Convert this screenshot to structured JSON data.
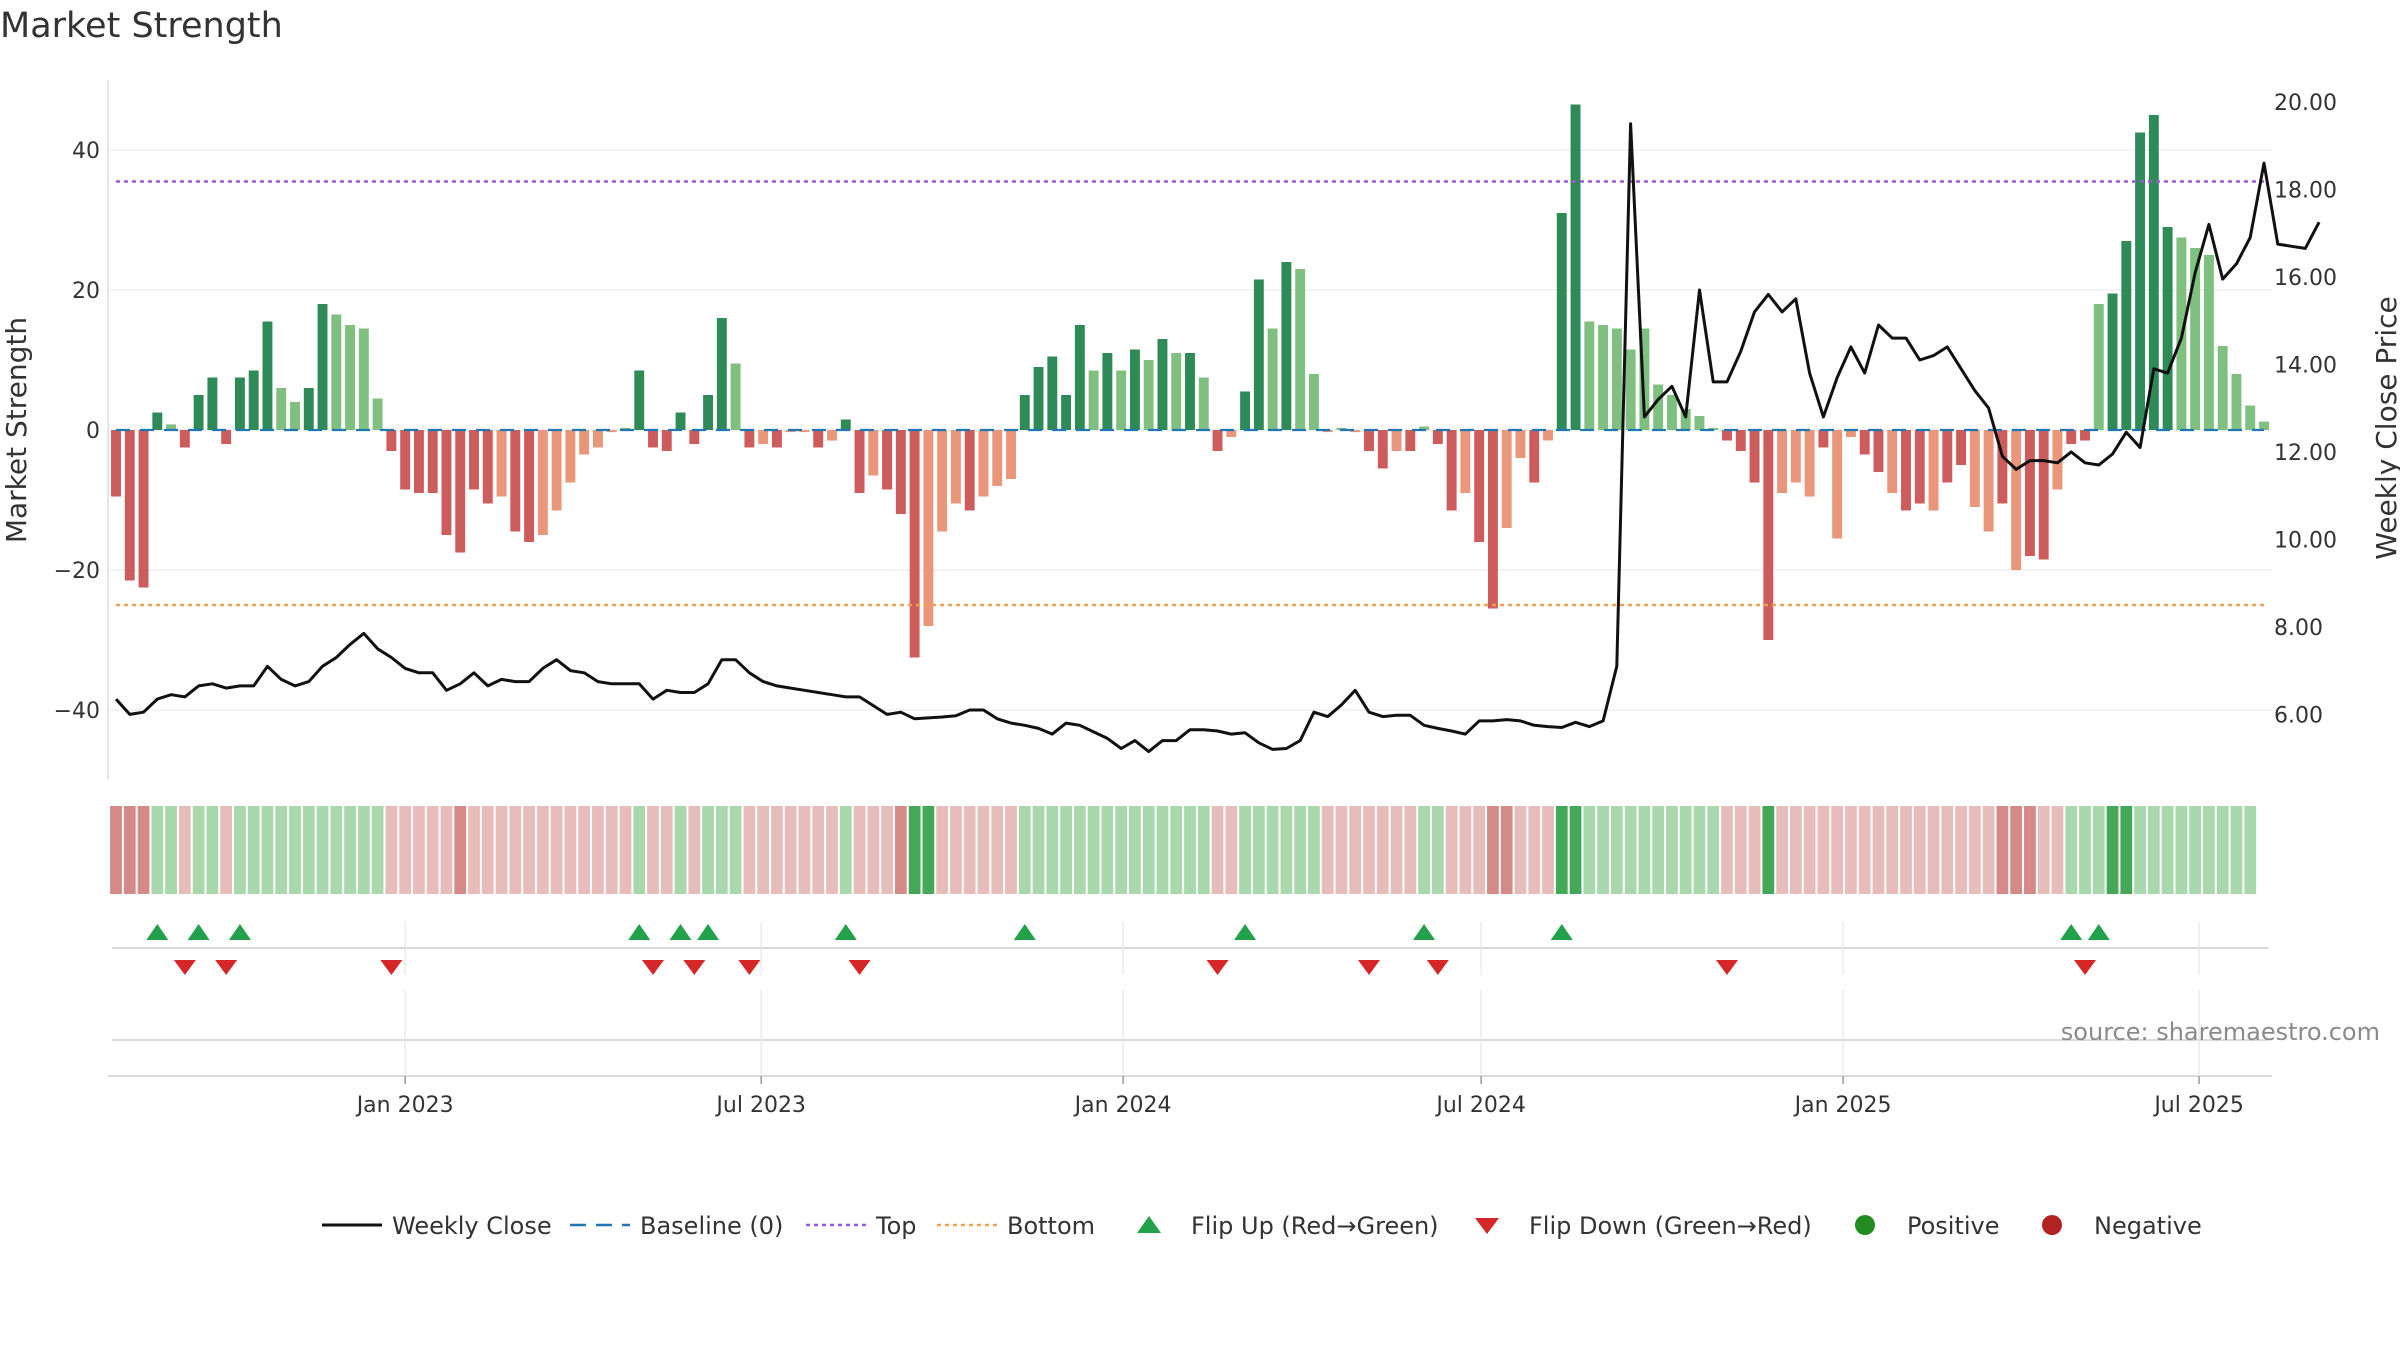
{
  "title": "Market Strength",
  "source": "source: sharemaestro.com",
  "colors": {
    "strong_green": "#2e8b57",
    "light_green": "#7fbf7f",
    "strong_red": "#cd5c5c",
    "light_red": "#e9967a",
    "top_line": "#9b59d6",
    "bottom_line": "#f0a050",
    "baseline": "#1f77b4",
    "price_line": "#111111",
    "flip_up": "#22a04a",
    "flip_down": "#d62728",
    "positive": "#228b22",
    "negative": "#b22222"
  },
  "chart_data": {
    "type": "bar",
    "title": "Market Strength",
    "ylabel": "Market Strength",
    "y2label": "Weekly Close Price",
    "ylim": [
      -50,
      50
    ],
    "y2lim": [
      4.5,
      20.5
    ],
    "yticks": [
      "40",
      "20",
      "0",
      "−20",
      "−40"
    ],
    "yticks_values": [
      40,
      20,
      0,
      -20,
      -40
    ],
    "y2ticks": [
      "20.00",
      "18.00",
      "16.00",
      "14.00",
      "12.00",
      "10.00",
      "8.00",
      "6.00"
    ],
    "y2ticks_values": [
      20,
      18,
      16,
      14,
      12,
      10,
      8,
      6
    ],
    "xticks": [
      "Jan 2023",
      "Jul 2023",
      "Jan 2024",
      "Jul 2024",
      "Jan 2025",
      "Jul 2025"
    ],
    "xticks_dates": [
      "2023-01-01",
      "2023-07-01",
      "2024-01-01",
      "2024-07-01",
      "2025-01-01",
      "2025-07-01"
    ],
    "x_start": "2022-08-07",
    "week_interval_days": 7,
    "top": 35.5,
    "bottom": -25,
    "strength": [
      -9.5,
      -21.5,
      -22.5,
      2.5,
      0.8,
      -2.5,
      5,
      7.5,
      -2,
      7.5,
      8.5,
      15.5,
      6,
      4,
      6,
      18,
      16.5,
      15,
      14.5,
      4.5,
      -3,
      -8.5,
      -9,
      -9,
      -15,
      -17.5,
      -8.5,
      -10.5,
      -9.5,
      -14.5,
      -16,
      -15,
      -11.5,
      -7.5,
      -3.5,
      -2.5,
      -0.3,
      0.3,
      8.5,
      -2.5,
      -3,
      2.5,
      -2,
      5,
      16,
      9.5,
      -2.5,
      -2,
      -2.5,
      -0.3,
      -0.3,
      -2.5,
      -1.5,
      1.5,
      -9,
      -6.5,
      -8.5,
      -12,
      -32.5,
      -28,
      -14.5,
      -10.5,
      -11.5,
      -9.5,
      -8,
      -7,
      5,
      9,
      10.5,
      5,
      15,
      8.5,
      11,
      8.5,
      11.5,
      10,
      13,
      11,
      11,
      7.5,
      -3,
      -1,
      5.5,
      21.5,
      14.5,
      24,
      23,
      8,
      -0.3,
      0.3,
      -0.3,
      -3,
      -5.5,
      -3,
      -3,
      0.5,
      -2,
      -11.5,
      -9,
      -16,
      -25.5,
      -14,
      -4,
      -7.5,
      -1.5,
      31,
      46.5,
      15.5,
      15,
      14.5,
      11.5,
      14.5,
      6.5,
      5,
      3,
      2,
      0.3,
      -1.5,
      -3,
      -7.5,
      -30,
      -9,
      -7.5,
      -9.5,
      -2.5,
      -15.5,
      -1,
      -3.5,
      -6,
      -9,
      -11.5,
      -10.5,
      -11.5,
      -7.5,
      -5,
      -11,
      -14.5,
      -10.5,
      -20,
      -18,
      -18.5,
      -8.5,
      -2,
      -1.5,
      18,
      19.5,
      27,
      42.5,
      45,
      29,
      27.5,
      26,
      25,
      12,
      8,
      3.5,
      1.2
    ],
    "strength_shade": [
      1,
      1,
      1,
      1,
      0,
      1,
      1,
      1,
      1,
      1,
      1,
      1,
      0,
      0,
      1,
      1,
      0,
      0,
      0,
      0,
      1,
      1,
      1,
      1,
      1,
      1,
      1,
      1,
      0,
      1,
      1,
      0,
      0,
      0,
      0,
      0,
      0,
      0,
      1,
      1,
      1,
      1,
      1,
      1,
      1,
      0,
      1,
      0,
      1,
      0,
      0,
      1,
      0,
      1,
      1,
      0,
      1,
      1,
      1,
      0,
      0,
      0,
      1,
      0,
      0,
      0,
      1,
      1,
      1,
      1,
      1,
      0,
      1,
      0,
      1,
      0,
      1,
      0,
      1,
      0,
      1,
      0,
      1,
      1,
      0,
      1,
      0,
      0,
      0,
      0,
      0,
      1,
      1,
      0,
      1,
      0,
      1,
      1,
      0,
      1,
      1,
      0,
      0,
      1,
      0,
      1,
      1,
      0,
      0,
      0,
      0,
      0,
      0,
      0,
      0,
      0,
      0,
      1,
      1,
      1,
      1,
      0,
      0,
      0,
      1,
      0,
      0,
      1,
      1,
      0,
      1,
      1,
      0,
      1,
      1,
      0,
      0,
      1,
      0,
      1,
      1,
      0,
      1,
      1,
      0,
      1,
      1,
      1,
      1,
      1,
      0,
      0,
      0,
      0,
      0,
      0,
      0,
      0
    ],
    "price": [
      6.35,
      6.0,
      6.05,
      6.35,
      6.45,
      6.4,
      6.65,
      6.7,
      6.6,
      6.65,
      6.65,
      7.1,
      6.8,
      6.65,
      6.75,
      7.1,
      7.3,
      7.6,
      7.85,
      7.5,
      7.3,
      7.05,
      6.95,
      6.95,
      6.55,
      6.7,
      6.95,
      6.65,
      6.8,
      6.75,
      6.75,
      7.05,
      7.25,
      7.0,
      6.95,
      6.75,
      6.7,
      6.7,
      6.7,
      6.35,
      6.55,
      6.5,
      6.5,
      6.7,
      7.25,
      7.25,
      6.95,
      6.75,
      6.65,
      6.6,
      6.55,
      6.5,
      6.45,
      6.4,
      6.4,
      6.2,
      6.0,
      6.05,
      5.9,
      5.92,
      5.94,
      5.97,
      6.1,
      6.1,
      5.9,
      5.8,
      5.75,
      5.68,
      5.55,
      5.8,
      5.75,
      5.6,
      5.45,
      5.22,
      5.4,
      5.15,
      5.4,
      5.4,
      5.65,
      5.65,
      5.62,
      5.55,
      5.58,
      5.35,
      5.2,
      5.22,
      5.4,
      6.05,
      5.95,
      6.22,
      6.55,
      6.05,
      5.95,
      5.98,
      5.98,
      5.75,
      5.68,
      5.62,
      5.55,
      5.85,
      5.85,
      5.88,
      5.85,
      5.75,
      5.72,
      5.7,
      5.82,
      5.72,
      5.85,
      7.1,
      19.5,
      12.8,
      13.2,
      13.5,
      12.8,
      15.7,
      13.6,
      13.6,
      14.3,
      15.2,
      15.6,
      15.2,
      15.5,
      13.8,
      12.8,
      13.7,
      14.4,
      13.8,
      14.9,
      14.6,
      14.6,
      14.1,
      14.2,
      14.4,
      13.9,
      13.4,
      13.0,
      11.9,
      11.6,
      11.8,
      11.8,
      11.75,
      12.0,
      11.75,
      11.7,
      11.95,
      12.45,
      12.1,
      13.9,
      13.8,
      14.6,
      16.1,
      17.2,
      15.95,
      16.3,
      16.9,
      18.6,
      16.75,
      16.7,
      16.65,
      17.25
    ],
    "band_colors": [
      2,
      2,
      2,
      0,
      0,
      1,
      0,
      0,
      1,
      0,
      0,
      0,
      0,
      0,
      0,
      0,
      0,
      0,
      0,
      0,
      1,
      1,
      1,
      1,
      1,
      2,
      1,
      1,
      1,
      1,
      1,
      1,
      1,
      1,
      1,
      1,
      1,
      1,
      0,
      1,
      1,
      0,
      1,
      0,
      0,
      0,
      1,
      1,
      1,
      1,
      1,
      1,
      1,
      0,
      1,
      1,
      1,
      2,
      3,
      3,
      1,
      1,
      1,
      1,
      1,
      1,
      0,
      0,
      0,
      0,
      0,
      0,
      0,
      0,
      0,
      0,
      0,
      0,
      0,
      0,
      1,
      1,
      0,
      0,
      0,
      0,
      0,
      0,
      1,
      1,
      1,
      1,
      1,
      1,
      1,
      0,
      0,
      1,
      1,
      1,
      2,
      2,
      1,
      1,
      1,
      3,
      3,
      0,
      0,
      0,
      0,
      0,
      0,
      0,
      0,
      0,
      0,
      1,
      1,
      1,
      3,
      1,
      1,
      1,
      1,
      1,
      1,
      1,
      1,
      1,
      1,
      1,
      1,
      1,
      1,
      1,
      1,
      2,
      2,
      2,
      1,
      1,
      0,
      0,
      0,
      3,
      3,
      0,
      0,
      0,
      0,
      0,
      0,
      0,
      0,
      0
    ],
    "flip_up_idx": [
      3,
      6,
      9,
      38,
      41,
      43,
      53,
      66,
      82,
      95,
      105,
      142,
      144
    ],
    "flip_down_idx": [
      5,
      8,
      20,
      39,
      42,
      46,
      54,
      80,
      91,
      96,
      117,
      143
    ],
    "legend": [
      {
        "label": "Weekly Close",
        "kind": "line-solid"
      },
      {
        "label": "Baseline (0)",
        "kind": "line-dashed"
      },
      {
        "label": "Top",
        "kind": "line-dotted-purple"
      },
      {
        "label": "Bottom",
        "kind": "line-dotted-orange"
      },
      {
        "label": "Flip Up (Red→Green)",
        "kind": "triangle-up"
      },
      {
        "label": "Flip Down (Green→Red)",
        "kind": "triangle-down"
      },
      {
        "label": "Positive",
        "kind": "dot-green"
      },
      {
        "label": "Negative",
        "kind": "dot-red"
      }
    ]
  }
}
